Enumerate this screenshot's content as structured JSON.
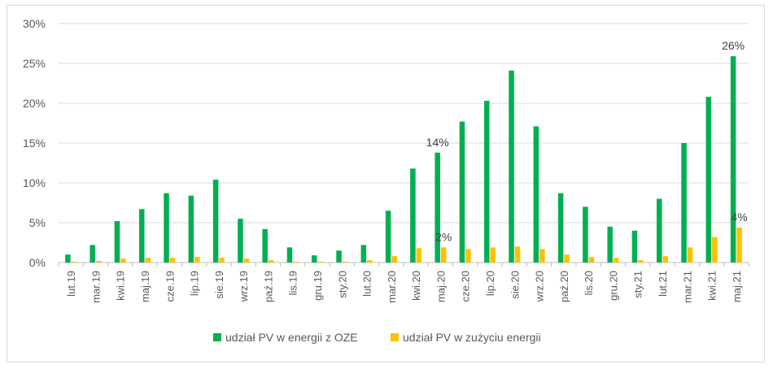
{
  "chart_data": {
    "type": "bar",
    "title": "",
    "xlabel": "",
    "ylabel": "",
    "ylim": [
      0,
      30
    ],
    "y_ticks": [
      "0%",
      "5%",
      "10%",
      "15%",
      "20%",
      "25%",
      "30%"
    ],
    "grid": true,
    "legend_position": "bottom",
    "categories": [
      "lut.19",
      "mar.19",
      "kwi.19",
      "maj.19",
      "cze.19",
      "lip.19",
      "sie.19",
      "wrz.19",
      "paź.19",
      "lis.19",
      "gru.19",
      "sty.20",
      "lut.20",
      "mar.20",
      "kwi.20",
      "maj.20",
      "cze.20",
      "lip.20",
      "sie.20",
      "wrz.20",
      "paź.20",
      "lis.20",
      "gru.20",
      "sty.21",
      "lut.21",
      "mar.21",
      "kwi.21",
      "maj.21"
    ],
    "series": [
      {
        "name": "udział PV w energii z OZE",
        "color": "#00b050",
        "values": [
          1.0,
          2.2,
          5.2,
          6.7,
          8.7,
          8.4,
          10.4,
          5.5,
          4.2,
          1.9,
          0.9,
          1.5,
          2.2,
          6.5,
          11.8,
          13.8,
          17.7,
          20.3,
          24.1,
          17.1,
          8.7,
          7.0,
          4.5,
          4.0,
          8.0,
          15.0,
          20.8,
          25.9
        ]
      },
      {
        "name": "udział PV w zużyciu energii",
        "color": "#ffc000",
        "values": [
          0.1,
          0.2,
          0.5,
          0.6,
          0.6,
          0.7,
          0.6,
          0.5,
          0.3,
          0.1,
          0.1,
          0.1,
          0.3,
          0.8,
          1.8,
          1.9,
          1.7,
          1.9,
          2.0,
          1.7,
          1.0,
          0.7,
          0.6,
          0.3,
          0.8,
          1.9,
          3.2,
          4.4
        ]
      }
    ],
    "data_labels": [
      {
        "series": 0,
        "category": "maj.20",
        "text": "14%"
      },
      {
        "series": 1,
        "category": "maj.20",
        "text": "2%"
      },
      {
        "series": 0,
        "category": "maj.21",
        "text": "26%"
      },
      {
        "series": 1,
        "category": "maj.21",
        "text": "4%"
      }
    ]
  }
}
